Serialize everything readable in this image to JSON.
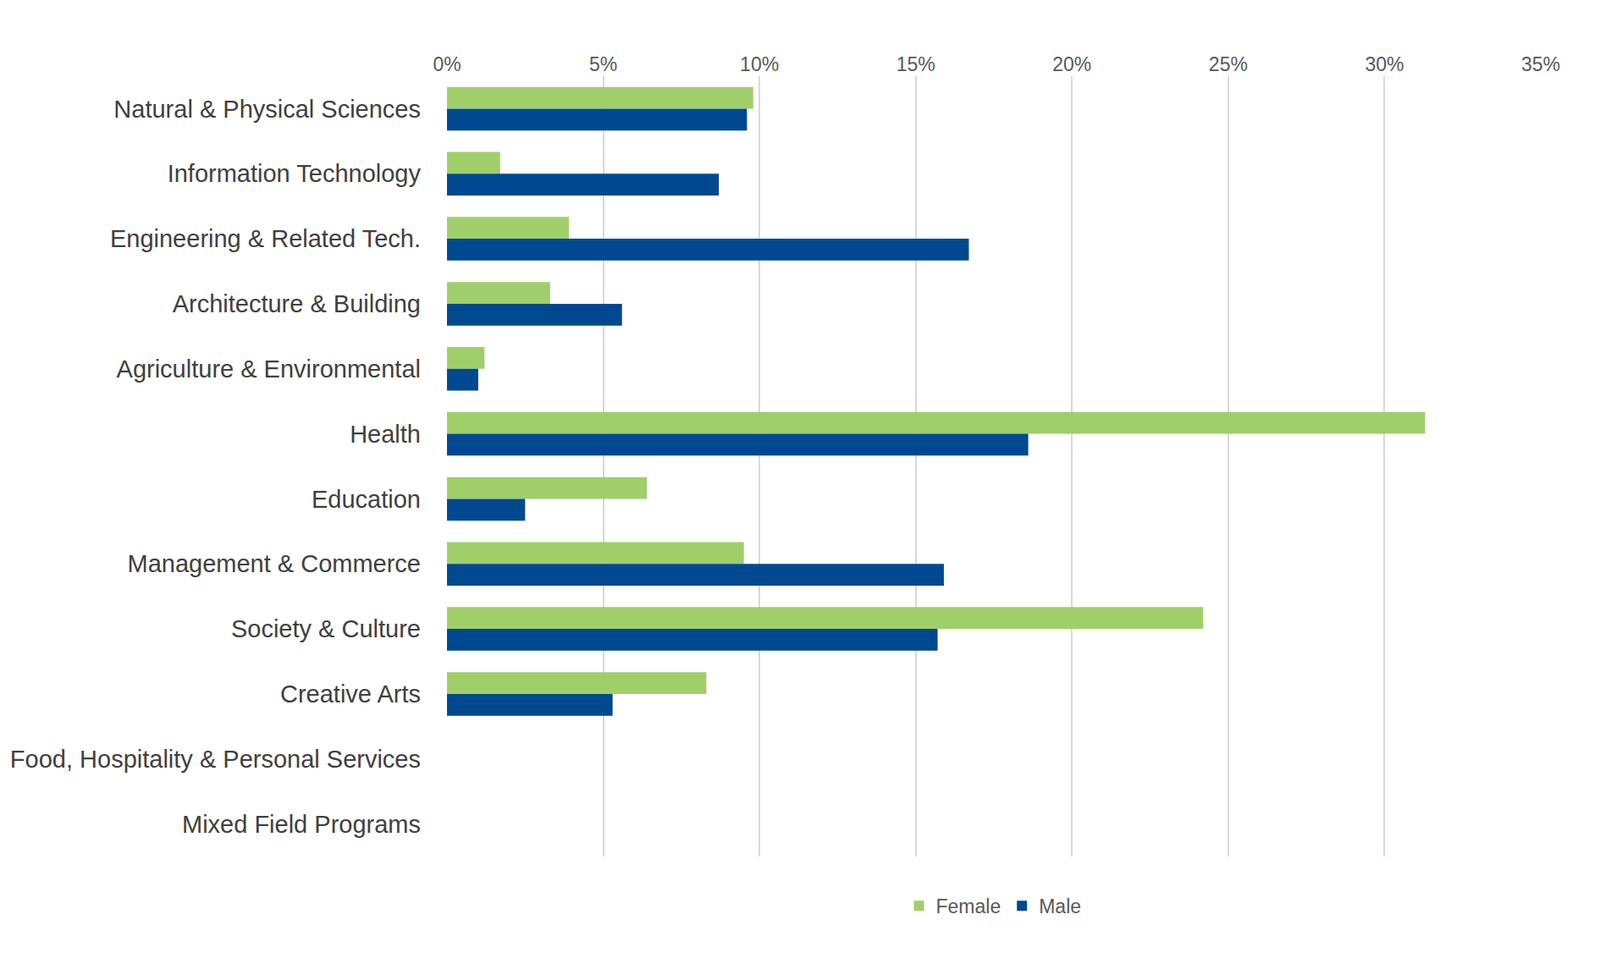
{
  "chart_data": {
    "type": "bar",
    "orientation": "horizontal",
    "categories": [
      "Natural & Physical Sciences",
      "Information Technology",
      "Engineering & Related Tech.",
      "Architecture & Building",
      "Agriculture & Environmental",
      "Health",
      "Education",
      "Management & Commerce",
      "Society & Culture",
      "Creative Arts",
      "Food, Hospitality & Personal Services",
      "Mixed Field Programs"
    ],
    "series": [
      {
        "name": "Female",
        "color": "#a0cf6a",
        "values": [
          9.8,
          1.7,
          3.9,
          3.3,
          1.2,
          31.3,
          6.4,
          9.5,
          24.2,
          8.3,
          0,
          0
        ]
      },
      {
        "name": "Male",
        "color": "#004990",
        "values": [
          9.6,
          8.7,
          16.7,
          5.6,
          1.0,
          18.6,
          2.5,
          15.9,
          15.7,
          5.3,
          0,
          0
        ]
      }
    ],
    "xlim": [
      0,
      35
    ],
    "xticks": [
      {
        "value": 0,
        "label": "0%"
      },
      {
        "value": 5,
        "label": "5%"
      },
      {
        "value": 10,
        "label": "10%"
      },
      {
        "value": 15,
        "label": "15%"
      },
      {
        "value": 20,
        "label": "20%"
      },
      {
        "value": 25,
        "label": "25%"
      },
      {
        "value": 30,
        "label": "30%"
      },
      {
        "value": 35,
        "label": "35%"
      }
    ],
    "grid": true,
    "legend": "bottom"
  }
}
